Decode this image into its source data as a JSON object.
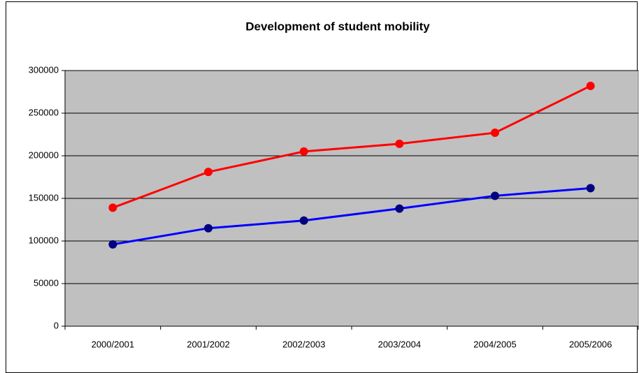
{
  "chart_data": {
    "type": "line",
    "title": "Development of student mobility",
    "categories": [
      "2000/2001",
      "2001/2002",
      "2002/2003",
      "2003/2004",
      "2004/2005",
      "2005/2006"
    ],
    "series": [
      {
        "color": "#ff0000",
        "marker_color": "#ff0000",
        "values": [
          139000,
          181000,
          205000,
          214000,
          227000,
          282000
        ]
      },
      {
        "color": "#0000ff",
        "marker_color": "#000080",
        "values": [
          96000,
          115000,
          124000,
          138000,
          153000,
          162000
        ]
      }
    ],
    "ylim": [
      0,
      300000
    ],
    "yticks": [
      0,
      50000,
      100000,
      150000,
      200000,
      250000,
      300000
    ],
    "grid": true
  }
}
